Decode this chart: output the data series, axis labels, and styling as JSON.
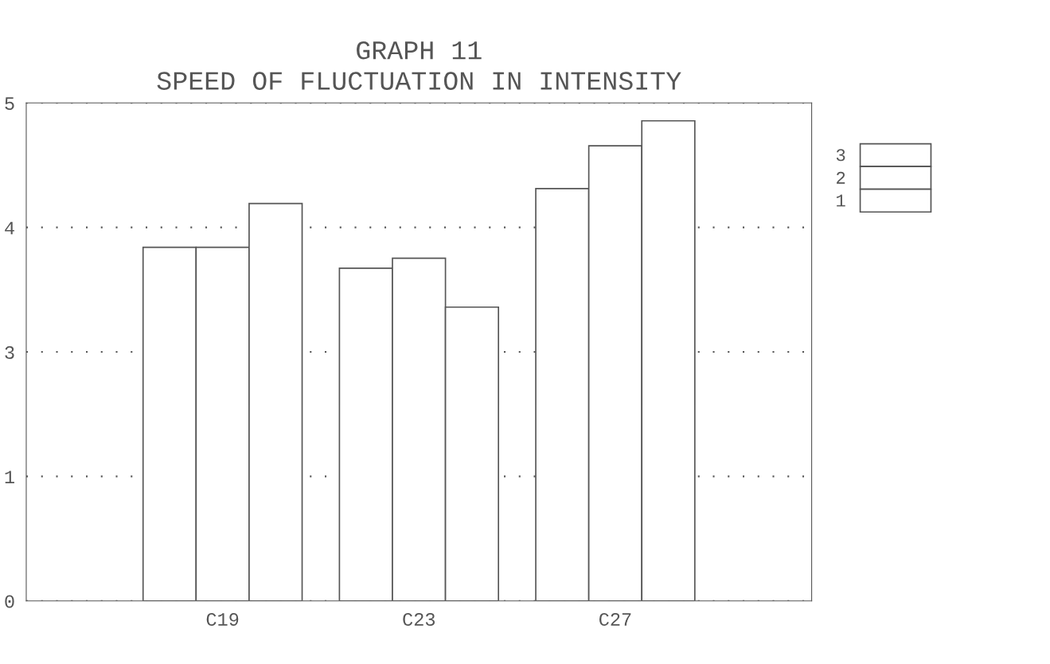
{
  "chart_data": {
    "type": "bar",
    "title": "GRAPH 11\nSPEED OF FLUCTUATION IN INTENSITY",
    "categories": [
      "C19",
      "C23",
      "C27"
    ],
    "series": [
      {
        "name": "1",
        "color": "#ffffff",
        "values": [
          3.55,
          3.34,
          4.14
        ]
      },
      {
        "name": "2",
        "color": "#ffffff",
        "values": [
          3.55,
          3.44,
          4.57
        ]
      },
      {
        "name": "3",
        "color": "#ffffff",
        "values": [
          3.99,
          2.95,
          4.82
        ]
      }
    ],
    "ylim": [
      0,
      5
    ],
    "yticks": [
      0,
      {
        "value": 1.25,
        "label": "1"
      },
      {
        "value": 2.5,
        "label": "3"
      },
      {
        "value": 3.75,
        "label": "4"
      },
      5
    ],
    "grid": "y",
    "legend": "right"
  }
}
